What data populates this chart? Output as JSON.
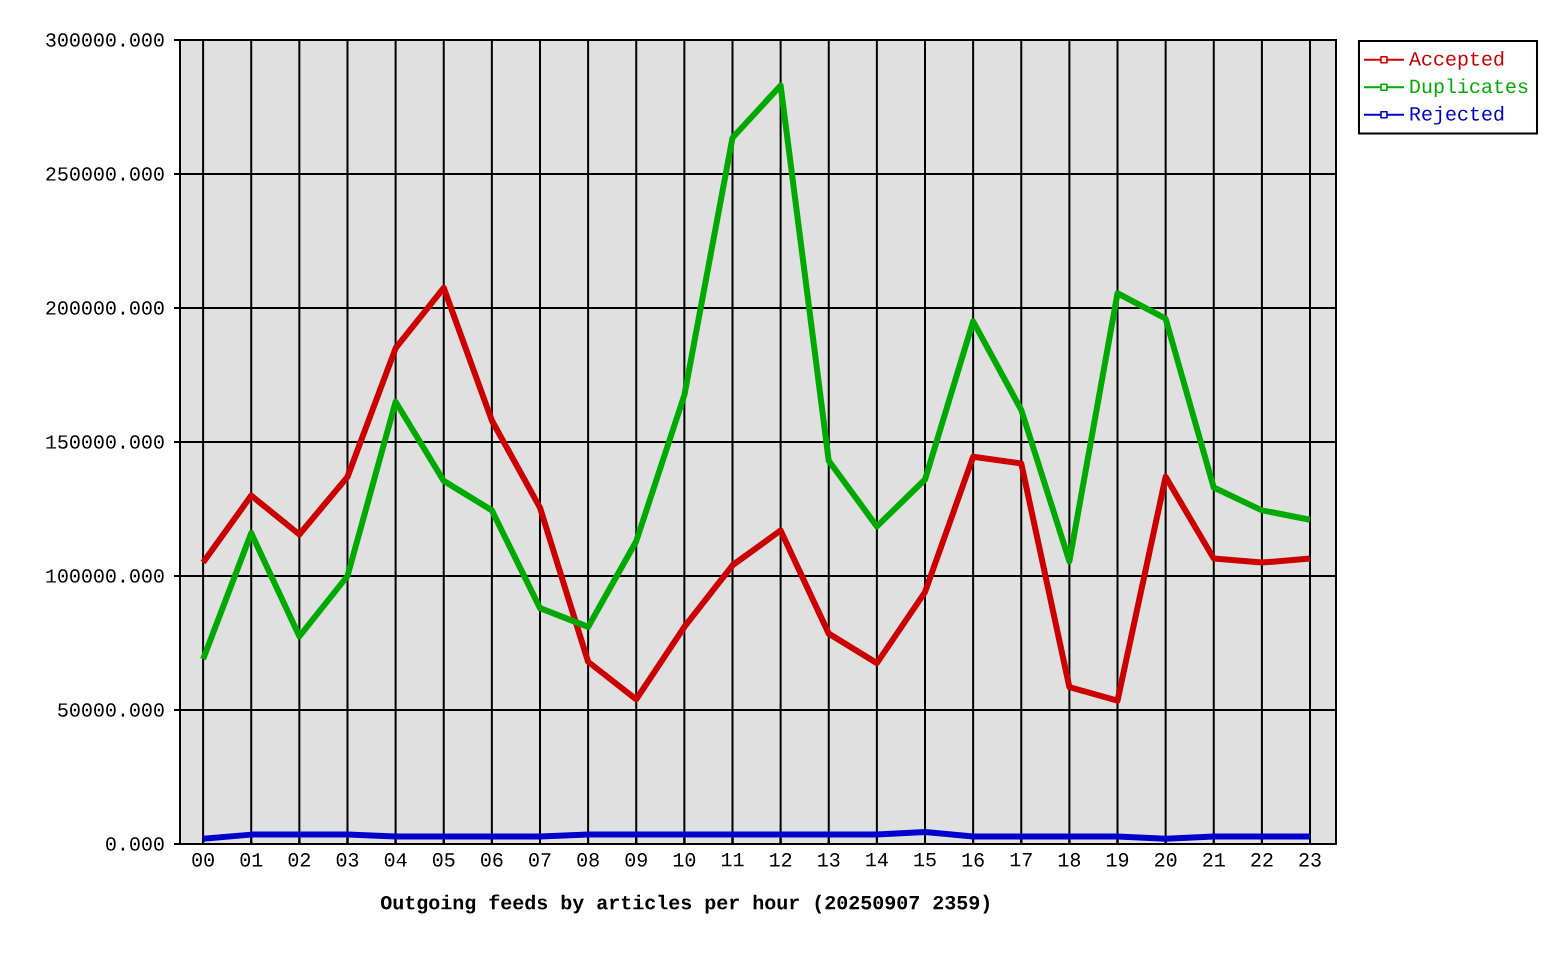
{
  "chart_data": {
    "type": "line",
    "xlabel": "Outgoing feeds by articles per hour (20250907 2359)",
    "categories": [
      "00",
      "01",
      "02",
      "03",
      "04",
      "05",
      "06",
      "07",
      "08",
      "09",
      "10",
      "11",
      "12",
      "13",
      "14",
      "15",
      "16",
      "17",
      "18",
      "19",
      "20",
      "21",
      "22",
      "23"
    ],
    "series": [
      {
        "name": "Accepted",
        "color": "#cc0000",
        "values": [
          105000,
          130000,
          115500,
          137000,
          185000,
          207500,
          158000,
          125500,
          68000,
          54000,
          81000,
          104000,
          117000,
          78500,
          67500,
          94000,
          144500,
          142000,
          58500,
          53500,
          137000,
          106500,
          105000,
          106500
        ]
      },
      {
        "name": "Duplicates",
        "color": "#00aa00",
        "values": [
          69000,
          116000,
          77500,
          100000,
          165000,
          135500,
          124500,
          88000,
          81000,
          113000,
          167500,
          263500,
          283000,
          143000,
          118500,
          136000,
          195000,
          162000,
          105500,
          205500,
          196000,
          133000,
          124500,
          121000
        ]
      },
      {
        "name": "Rejected",
        "color": "#0000cc",
        "values": [
          2000,
          3500,
          3500,
          3500,
          2800,
          2800,
          2800,
          2800,
          3500,
          3500,
          3500,
          3500,
          3500,
          3500,
          3500,
          4500,
          2800,
          2800,
          2800,
          2800,
          2000,
          2800,
          2800,
          2800
        ]
      }
    ],
    "ylim": [
      0,
      300000
    ],
    "yticks": [
      {
        "value": 0,
        "label": "0.000"
      },
      {
        "value": 50000,
        "label": "50000.000"
      },
      {
        "value": 100000,
        "label": "100000.000"
      },
      {
        "value": 150000,
        "label": "150000.000"
      },
      {
        "value": 200000,
        "label": "200000.000"
      },
      {
        "value": 250000,
        "label": "250000.000"
      },
      {
        "value": 300000,
        "label": "300000.000"
      }
    ],
    "grid": true,
    "legend": "top right",
    "line_style": "solid"
  }
}
